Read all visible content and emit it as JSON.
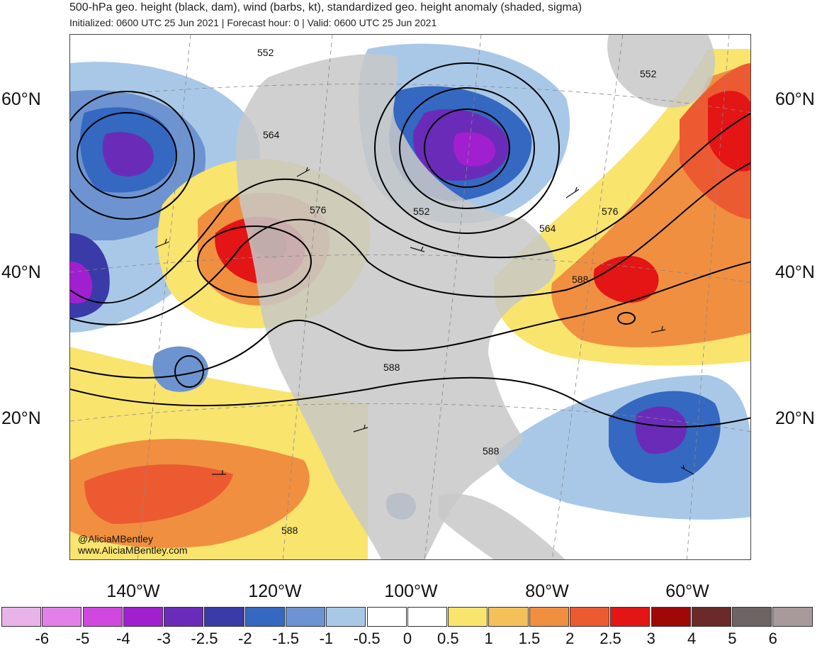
{
  "header": {
    "title": "500-hPa geo. height (black, dam), wind (barbs, kt), standardized geo. height anomaly (shaded, sigma)",
    "subtitle": "Initialized: 0600 UTC 25 Jun 2021 | Forecast hour: 0 | Valid: 0600 UTC 25 Jun 2021"
  },
  "map": {
    "lat_labels": [
      "60°N",
      "40°N",
      "20°N"
    ],
    "lon_labels": [
      "140°W",
      "120°W",
      "100°W",
      "80°W",
      "60°W"
    ],
    "contour_labels": [
      "552",
      "564",
      "576",
      "552",
      "564",
      "576",
      "588",
      "588",
      "588",
      "588",
      "552"
    ],
    "features": {
      "land_color": "#c8c8c8",
      "coastline_color": "#555555",
      "contour_color": "#000000"
    }
  },
  "colorbar": {
    "labels": [
      "-6",
      "-5",
      "-4",
      "-3",
      "-2.5",
      "-2",
      "-1.5",
      "-1",
      "-0.5",
      "0",
      "0.5",
      "1",
      "1.5",
      "2",
      "2.5",
      "3",
      "4",
      "5",
      "6"
    ],
    "colors": [
      "#e8b3e8",
      "#e080e8",
      "#d048e0",
      "#a020d0",
      "#6a2cb8",
      "#3a3aa8",
      "#3568c0",
      "#6d94d0",
      "#a9c8e8",
      "#ffffff",
      "#ffffff",
      "#f9e46e",
      "#f3c05a",
      "#f08f40",
      "#ec5a32",
      "#e41515",
      "#a00808",
      "#6a2a2a",
      "#6f6464",
      "#a89a9a"
    ]
  },
  "credits": {
    "handle": "@AliciaMBentley",
    "website": "www.AliciaMBentley.com"
  }
}
